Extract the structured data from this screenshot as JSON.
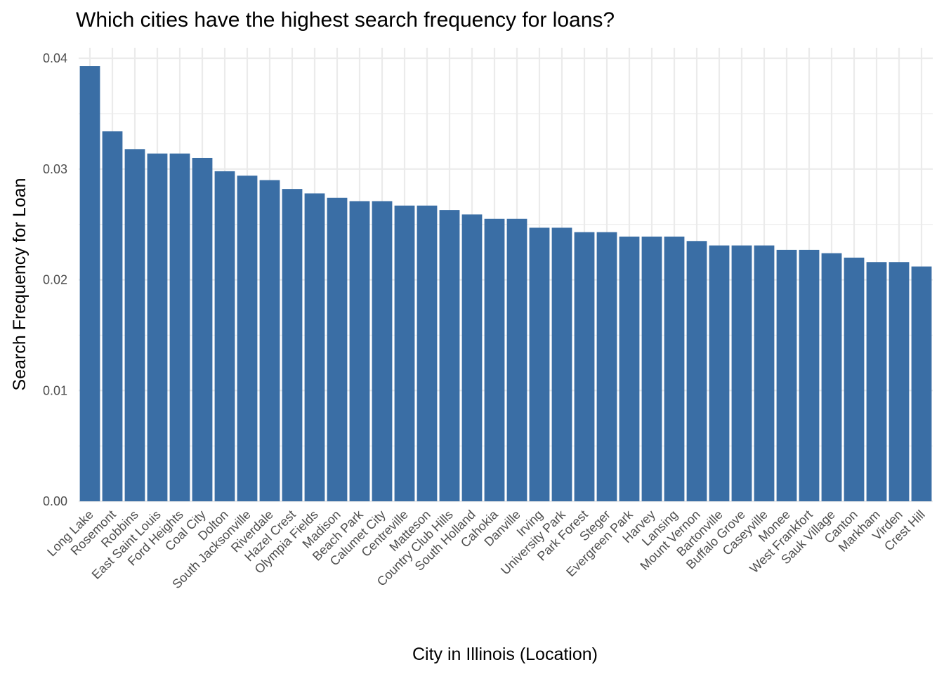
{
  "chart_data": {
    "type": "bar",
    "title": "Which cities have the highest search frequency for loans?",
    "xlabel": "City in Illinois (Location)",
    "ylabel": "Search Frequency for Loan",
    "ylim": [
      0,
      0.04
    ],
    "y_ticks": [
      "0.00",
      "0.01",
      "0.02",
      "0.03",
      "0.04"
    ],
    "bar_color": "#3a6ea5",
    "categories": [
      "Long Lake",
      "Rosemont",
      "Robbins",
      "East Saint Louis",
      "Ford Heights",
      "Coal City",
      "Dolton",
      "South Jacksonville",
      "Riverdale",
      "Hazel Crest",
      "Olympia Fields",
      "Madison",
      "Beach Park",
      "Calumet City",
      "Centreville",
      "Matteson",
      "Country Club Hills",
      "South Holland",
      "Cahokia",
      "Danville",
      "Irving",
      "University Park",
      "Park Forest",
      "Steger",
      "Evergreen Park",
      "Harvey",
      "Lansing",
      "Mount Vernon",
      "Bartonville",
      "Buffalo Grove",
      "Caseyville",
      "Monee",
      "West Frankfort",
      "Sauk Village",
      "Canton",
      "Markham",
      "Virden",
      "Crest Hill"
    ],
    "values": [
      0.0393,
      0.0334,
      0.0318,
      0.0314,
      0.0314,
      0.031,
      0.0298,
      0.0294,
      0.029,
      0.0282,
      0.0278,
      0.0274,
      0.0271,
      0.0271,
      0.0267,
      0.0267,
      0.0263,
      0.0259,
      0.0255,
      0.0255,
      0.0247,
      0.0247,
      0.0243,
      0.0243,
      0.0239,
      0.0239,
      0.0239,
      0.0235,
      0.0231,
      0.0231,
      0.0231,
      0.0227,
      0.0227,
      0.0224,
      0.022,
      0.0216,
      0.0216,
      0.0212
    ]
  }
}
